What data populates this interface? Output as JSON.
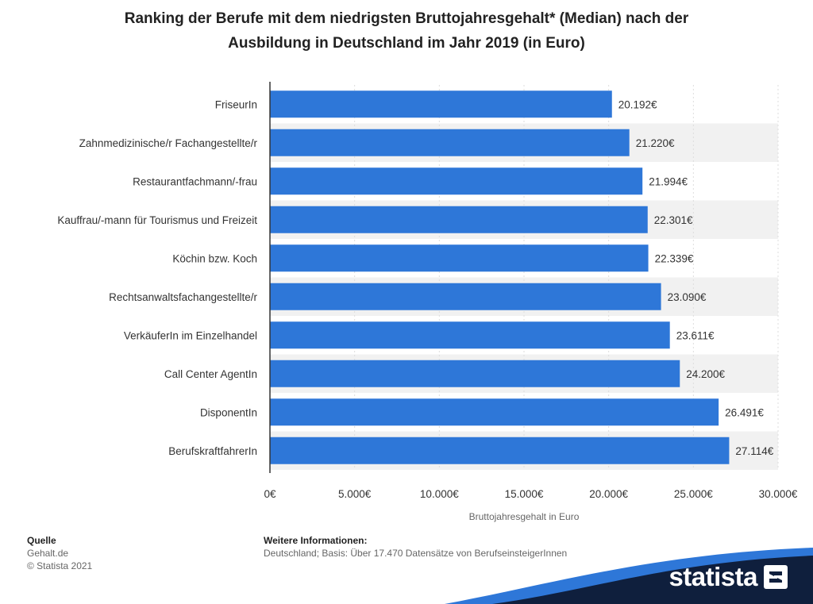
{
  "chart_data": {
    "type": "bar",
    "orientation": "horizontal",
    "title": "Ranking der Berufe mit dem niedrigsten Bruttojahresgehalt* (Median) nach der Ausbildung in Deutschland im Jahr 2019 (in Euro)",
    "title_lines": [
      "Ranking der Berufe mit dem niedrigsten Bruttojahresgehalt* (Median) nach der",
      "Ausbildung in Deutschland im Jahr 2019 (in Euro)"
    ],
    "xlabel": "Bruttojahresgehalt in Euro",
    "ylabel": "",
    "categories": [
      "FriseurIn",
      "Zahnmedizinische/r Fachangestellte/r",
      "Restaurantfachmann/-frau",
      "Kauffrau/-mann für Tourismus und Freizeit",
      "Köchin bzw. Koch",
      "Rechtsanwaltsfachangestellte/r",
      "VerkäuferIn im Einzelhandel",
      "Call Center AgentIn",
      "DisponentIn",
      "BerufskraftfahrerIn"
    ],
    "values": [
      20192,
      21220,
      21994,
      22301,
      22339,
      23090,
      23611,
      24200,
      26491,
      27114
    ],
    "value_labels": [
      "20.192€",
      "21.220€",
      "21.994€",
      "22.301€",
      "22.339€",
      "23.090€",
      "23.611€",
      "24.200€",
      "26.491€",
      "27.114€"
    ],
    "xlim": [
      0,
      30000
    ],
    "xticks": [
      0,
      5000,
      10000,
      15000,
      20000,
      25000,
      30000
    ],
    "xtick_labels": [
      "0€",
      "5.000€",
      "10.000€",
      "15.000€",
      "20.000€",
      "25.000€",
      "30.000€"
    ],
    "grid": true,
    "legend": "none",
    "colors": {
      "bar": "#2e77d8",
      "stripe": "#f1f1f1",
      "axis": "#333333",
      "text": "#333333"
    }
  },
  "footer": {
    "source_heading": "Quelle",
    "source_name": "Gehalt.de",
    "copyright": "© Statista 2021",
    "info_heading": "Weitere Informationen:",
    "info_text": "Deutschland; Basis: Über 17.470 Datensätze von BerufseinsteigerInnen"
  },
  "brand": {
    "name": "statista",
    "icon": "statista-logo-icon",
    "color_dark": "#0f1f3d",
    "color_accent": "#2e77d8"
  }
}
